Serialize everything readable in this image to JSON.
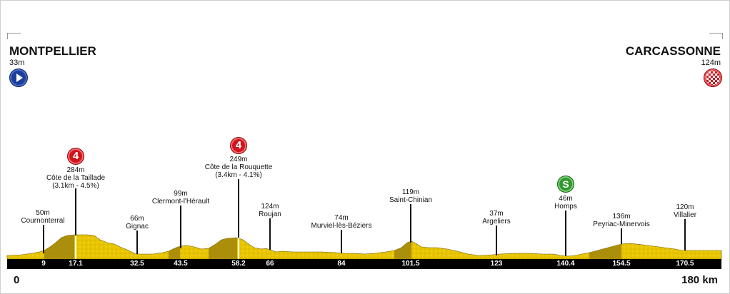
{
  "stage": {
    "start": {
      "name": "MONTPELLIER",
      "altitude": "33m"
    },
    "finish": {
      "name": "CARCASSONNE",
      "altitude": "124m"
    },
    "axis": {
      "start_label": "0",
      "end_label": "180 km"
    }
  },
  "points": [
    {
      "km": "9",
      "name": "Cournonterral",
      "altitude": "50m"
    },
    {
      "km": "17.1",
      "name": "Côte de la Taillade",
      "altitude": "284m",
      "detail": "(3.1km - 4.5%)",
      "badge": "4",
      "badge_type": "kom"
    },
    {
      "km": "32.5",
      "name": "Gignac",
      "altitude": "66m"
    },
    {
      "km": "43.5",
      "name": "Clermont-l'Hérault",
      "altitude": "99m"
    },
    {
      "km": "58.2",
      "name": "Côte de la Rouquette",
      "altitude": "249m",
      "detail": "(3.4km - 4.1%)",
      "badge": "4",
      "badge_type": "kom"
    },
    {
      "km": "66",
      "name": "Roujan",
      "altitude": "124m"
    },
    {
      "km": "84",
      "name": "Murviel-lès-Béziers",
      "altitude": "74m"
    },
    {
      "km": "101.5",
      "name": "Saint-Chinian",
      "altitude": "119m"
    },
    {
      "km": "123",
      "name": "Argeliers",
      "altitude": "37m"
    },
    {
      "km": "140.4",
      "name": "Homps",
      "altitude": "46m",
      "badge": "S",
      "badge_type": "sprint"
    },
    {
      "km": "154.5",
      "name": "Peyriac-Minervois",
      "altitude": "136m"
    },
    {
      "km": "170.5",
      "name": "Villalier",
      "altitude": "120m"
    }
  ],
  "colors": {
    "terrain": "#e8c500",
    "terrain_dark": "#9a7f00",
    "bar": "#000000",
    "kom": "#d0151d",
    "sprint": "#2e9a2b"
  }
}
